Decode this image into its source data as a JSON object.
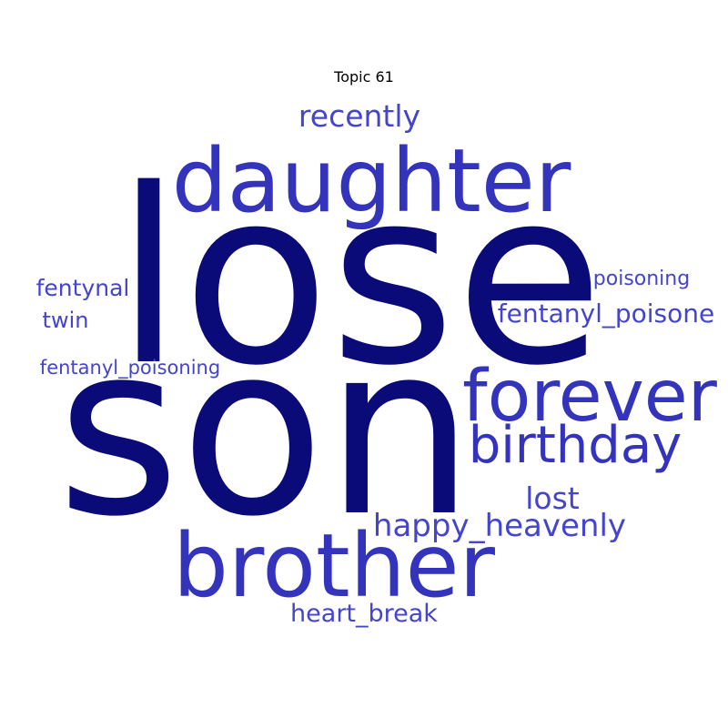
{
  "title": "Topic 61",
  "palette": {
    "darkest": "#0a0a78",
    "strong": "#3333bb",
    "medium": "#4444cc"
  },
  "words": [
    {
      "text": "lose",
      "weight": 1.0,
      "tone": "darkest"
    },
    {
      "text": "son",
      "weight": 0.98,
      "tone": "darkest"
    },
    {
      "text": "daughter",
      "weight": 0.45,
      "tone": "strong"
    },
    {
      "text": "brother",
      "weight": 0.45,
      "tone": "strong"
    },
    {
      "text": "forever",
      "weight": 0.4,
      "tone": "strong"
    },
    {
      "text": "birthday",
      "weight": 0.3,
      "tone": "strong"
    },
    {
      "text": "recently",
      "weight": 0.17,
      "tone": "medium"
    },
    {
      "text": "lost",
      "weight": 0.17,
      "tone": "medium"
    },
    {
      "text": "happy_heavenly",
      "weight": 0.17,
      "tone": "medium"
    },
    {
      "text": "fentanyl_poisone",
      "weight": 0.15,
      "tone": "medium"
    },
    {
      "text": "heart_break",
      "weight": 0.15,
      "tone": "medium"
    },
    {
      "text": "fentynal",
      "weight": 0.13,
      "tone": "medium"
    },
    {
      "text": "twin",
      "weight": 0.13,
      "tone": "medium"
    },
    {
      "text": "poisoning",
      "weight": 0.12,
      "tone": "medium"
    },
    {
      "text": "fentanyl_poisoning",
      "weight": 0.12,
      "tone": "medium"
    }
  ]
}
